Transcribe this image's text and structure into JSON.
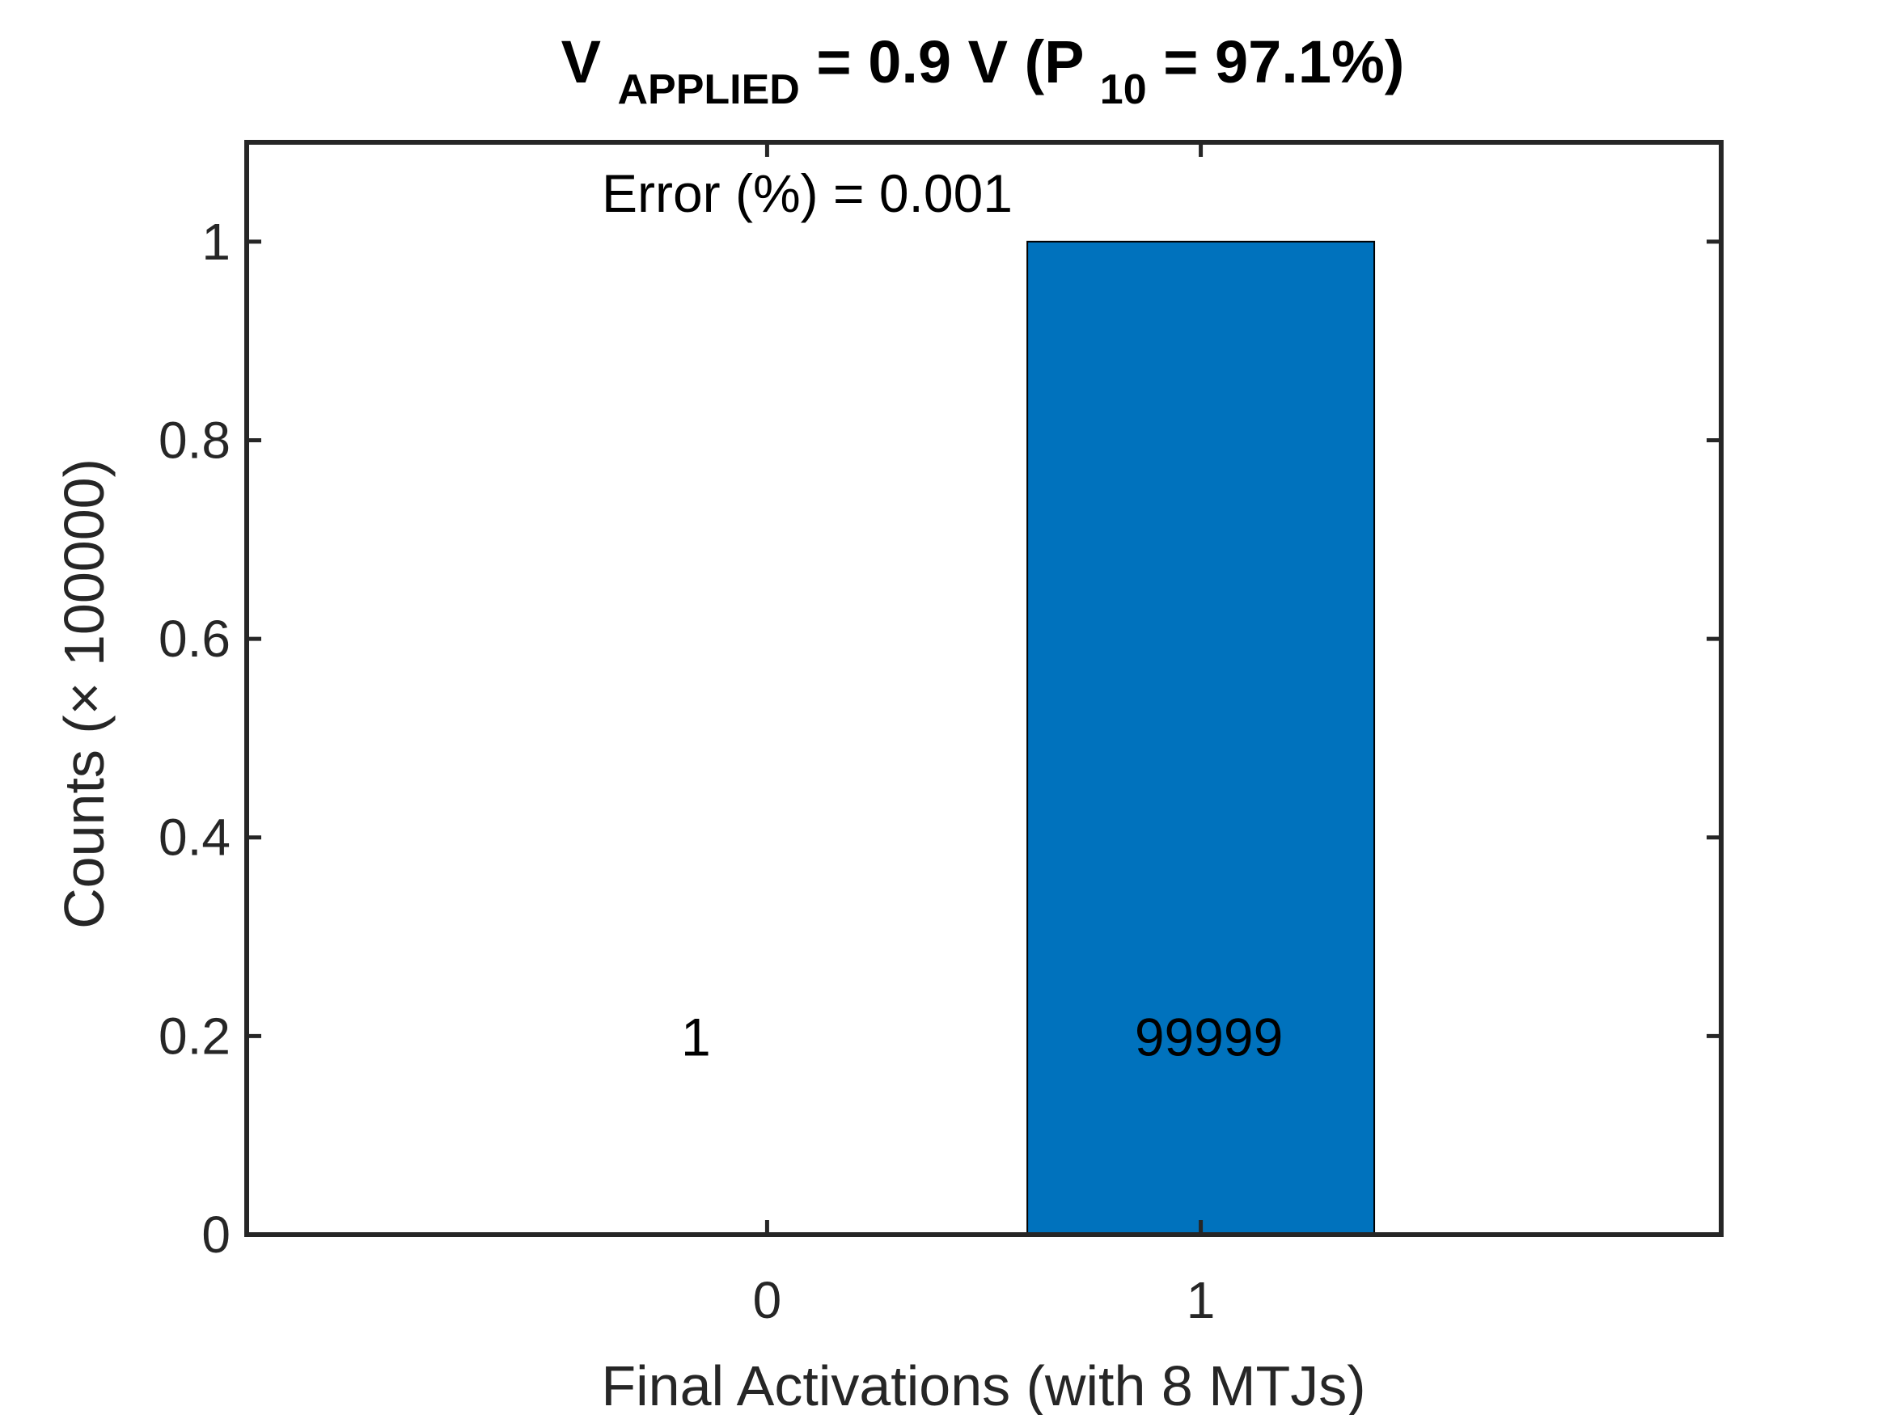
{
  "chart_data": {
    "type": "bar",
    "title": {
      "main": "V",
      "sub1": "APPLIED",
      "mid": " = 0.9 V (P",
      "sub2": "10",
      "end": " = 97.1%)"
    },
    "annotation": "Error (%) = 0.001",
    "xlabel": "Final Activations (with 8 MTJs)",
    "ylabel": "Counts (× 100000)",
    "categories": [
      "0",
      "1"
    ],
    "x": [
      0,
      1
    ],
    "values": [
      1e-05,
      0.99999
    ],
    "bar_labels": [
      "1",
      "99999"
    ],
    "xlim": [
      -1.2,
      2.2
    ],
    "ylim": [
      0,
      1.1
    ],
    "yticks": [
      0,
      0.2,
      0.4,
      0.6,
      0.8,
      1
    ],
    "ytick_labels": [
      "0",
      "0.2",
      "0.4",
      "0.6",
      "0.8",
      "1"
    ],
    "xticks": [
      0,
      1
    ],
    "xtick_labels": [
      "0",
      "1"
    ],
    "bar_width": 0.8,
    "bar_color": "#0072BD",
    "bar_edge_color": "#000000",
    "axis_color": "#262626",
    "grid": false,
    "legend": "none"
  }
}
